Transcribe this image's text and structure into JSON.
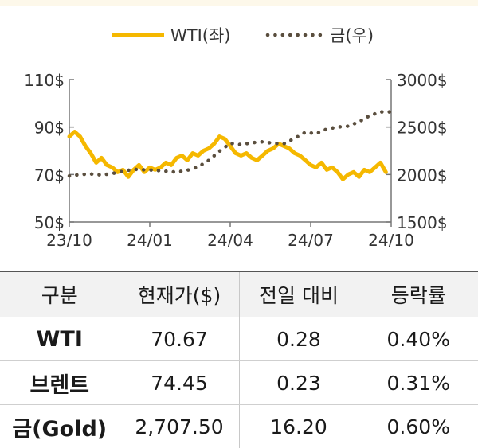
{
  "chart_data": {
    "type": "line",
    "legend": {
      "placement": "top-center"
    },
    "x_ticks": [
      "23/10",
      "24/01",
      "24/04",
      "24/07",
      "24/10"
    ],
    "y_left": {
      "range": [
        50,
        110
      ],
      "ticks": [
        "110$",
        "90$",
        "70$",
        "50$"
      ],
      "tick_values": [
        110,
        90,
        70,
        50
      ]
    },
    "y_right": {
      "range": [
        1500,
        3000
      ],
      "ticks": [
        "3000$",
        "2500$",
        "2000$",
        "1500$"
      ],
      "tick_values": [
        3000,
        2500,
        2000,
        1500
      ]
    },
    "x_range": [
      0,
      12
    ],
    "series": [
      {
        "name": "WTI(좌)",
        "axis": "left",
        "style": "solid",
        "color": "#f5b800",
        "points": [
          [
            0,
            86
          ],
          [
            0.2,
            88
          ],
          [
            0.4,
            86
          ],
          [
            0.6,
            82
          ],
          [
            0.8,
            79
          ],
          [
            1.0,
            75
          ],
          [
            1.2,
            77
          ],
          [
            1.4,
            74
          ],
          [
            1.6,
            73
          ],
          [
            1.8,
            71
          ],
          [
            2.0,
            72
          ],
          [
            2.2,
            69
          ],
          [
            2.4,
            72
          ],
          [
            2.6,
            74
          ],
          [
            2.8,
            71
          ],
          [
            3.0,
            73
          ],
          [
            3.2,
            72
          ],
          [
            3.4,
            73
          ],
          [
            3.6,
            75
          ],
          [
            3.8,
            74
          ],
          [
            4.0,
            77
          ],
          [
            4.2,
            78
          ],
          [
            4.4,
            76
          ],
          [
            4.6,
            79
          ],
          [
            4.8,
            78
          ],
          [
            5.0,
            80
          ],
          [
            5.2,
            81
          ],
          [
            5.4,
            83
          ],
          [
            5.6,
            86
          ],
          [
            5.8,
            85
          ],
          [
            6.0,
            82
          ],
          [
            6.2,
            79
          ],
          [
            6.4,
            78
          ],
          [
            6.6,
            79
          ],
          [
            6.8,
            77
          ],
          [
            7.0,
            76
          ],
          [
            7.2,
            78
          ],
          [
            7.4,
            80
          ],
          [
            7.6,
            81
          ],
          [
            7.8,
            83
          ],
          [
            8.0,
            82
          ],
          [
            8.2,
            81
          ],
          [
            8.4,
            79
          ],
          [
            8.6,
            78
          ],
          [
            8.8,
            76
          ],
          [
            9.0,
            74
          ],
          [
            9.2,
            73
          ],
          [
            9.4,
            75
          ],
          [
            9.6,
            72
          ],
          [
            9.8,
            73
          ],
          [
            10.0,
            71
          ],
          [
            10.2,
            68
          ],
          [
            10.4,
            70
          ],
          [
            10.6,
            71
          ],
          [
            10.8,
            69
          ],
          [
            11.0,
            72
          ],
          [
            11.2,
            71
          ],
          [
            11.4,
            73
          ],
          [
            11.6,
            75
          ],
          [
            11.8,
            71
          ]
        ]
      },
      {
        "name": "금(우)",
        "axis": "right",
        "style": "dotted",
        "color": "#5a4e3e",
        "points": [
          [
            0,
            1985
          ],
          [
            0.4,
            2000
          ],
          [
            0.8,
            2005
          ],
          [
            1.2,
            1995
          ],
          [
            1.6,
            2010
          ],
          [
            2.0,
            2035
          ],
          [
            2.4,
            2055
          ],
          [
            2.8,
            2050
          ],
          [
            3.2,
            2045
          ],
          [
            3.6,
            2035
          ],
          [
            4.0,
            2025
          ],
          [
            4.4,
            2045
          ],
          [
            4.8,
            2080
          ],
          [
            5.2,
            2150
          ],
          [
            5.6,
            2245
          ],
          [
            6.0,
            2330
          ],
          [
            6.4,
            2315
          ],
          [
            6.8,
            2335
          ],
          [
            7.2,
            2345
          ],
          [
            7.6,
            2330
          ],
          [
            8.0,
            2325
          ],
          [
            8.4,
            2380
          ],
          [
            8.8,
            2445
          ],
          [
            9.2,
            2430
          ],
          [
            9.6,
            2480
          ],
          [
            10.0,
            2500
          ],
          [
            10.4,
            2510
          ],
          [
            10.8,
            2555
          ],
          [
            11.2,
            2620
          ],
          [
            11.6,
            2660
          ],
          [
            12.0,
            2660
          ]
        ]
      }
    ]
  },
  "table": {
    "headers": [
      "구분",
      "현재가($)",
      "전일 대비",
      "등락률"
    ],
    "rows": [
      [
        "WTI",
        "70.67",
        "0.28",
        "0.40%"
      ],
      [
        "브렌트",
        "74.45",
        "0.23",
        "0.31%"
      ],
      [
        "금(Gold)",
        "2,707.50",
        "16.20",
        "0.60%"
      ]
    ]
  }
}
